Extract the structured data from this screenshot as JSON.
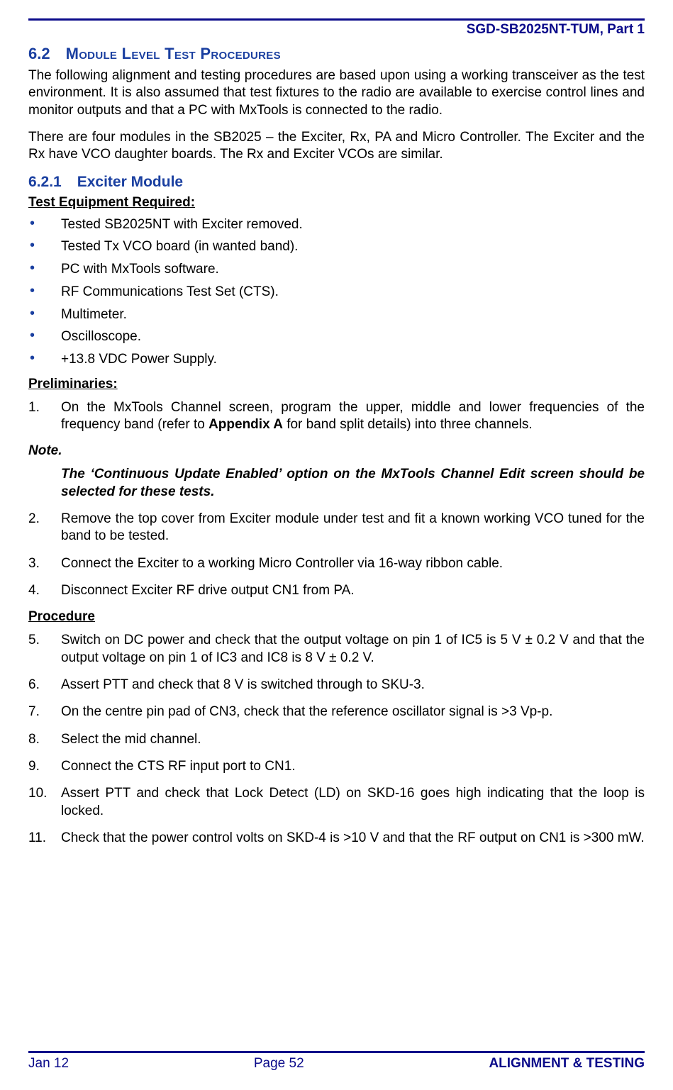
{
  "colors": {
    "accent": "#0a0a8a",
    "heading": "#1a3fa0",
    "text": "#000000",
    "background": "#ffffff"
  },
  "typography": {
    "base_family": "Arial",
    "base_size_pt": 11,
    "heading_size_pt": 13,
    "subheading_size_pt": 12
  },
  "header": {
    "doc_id": "SGD-SB2025NT-TUM, Part 1"
  },
  "section": {
    "number": "6.2",
    "title": "Module Level Test Procedures",
    "intro_p1": "The following alignment and testing procedures are based upon using a working transceiver as the test environment.  It is also assumed that test fixtures to the radio are available to exercise control lines and monitor outputs and that a PC with MxTools is connected to the radio.",
    "intro_p2": "There are four modules in the SB2025 – the Exciter, Rx, PA and Micro Controller.  The Exciter and the Rx have VCO daughter boards.  The Rx and Exciter VCOs are similar."
  },
  "subsection": {
    "number": "6.2.1",
    "title": "Exciter Module",
    "equip_heading": "Test Equipment Required:",
    "equipment": [
      "Tested SB2025NT with Exciter removed.",
      "Tested Tx VCO board (in wanted band).",
      "PC with MxTools software.",
      "RF Communications Test Set (CTS).",
      "Multimeter.",
      "Oscilloscope.",
      "+13.8 VDC Power Supply."
    ],
    "prelim_heading": "Preliminaries:",
    "prelim": {
      "1_pre": "On the MxTools Channel screen, program the upper, middle and lower frequencies of the frequency band (refer to ",
      "1_bold": "Appendix A",
      "1_post": " for band split details) into three channels.",
      "note_label": "Note.",
      "note_body": "The ‘Continuous Update Enabled’ option on the MxTools Channel Edit screen should be selected for these tests.",
      "2": "Remove the top cover from Exciter module under test and fit a known working VCO tuned for the band to be tested.",
      "3": "Connect the Exciter to a working Micro Controller via 16-way ribbon cable.",
      "4": "Disconnect Exciter RF drive output CN1 from PA."
    },
    "proc_heading": "Procedure",
    "procedure": {
      "5": "Switch on DC power and check that the output voltage on pin 1 of IC5 is 5 V ± 0.2 V and that the output voltage on pin 1 of IC3 and IC8 is 8 V ± 0.2 V.",
      "6": "Assert PTT and check that 8 V is switched through to SKU-3.",
      "7": "On the centre pin pad of CN3, check that the reference oscillator signal is >3 Vp-p.",
      "8": "Select the mid channel.",
      "9": "Connect the CTS RF input port to CN1.",
      "10": "Assert PTT and check that Lock Detect (LD) on SKD-16 goes high indicating that the loop is locked.",
      "11": "Check that the power control volts on SKD-4 is >10 V and that the RF output on CN1 is >300 mW."
    }
  },
  "footer": {
    "left": "Jan 12",
    "center": "Page 52",
    "right": "ALIGNMENT & TESTING"
  }
}
